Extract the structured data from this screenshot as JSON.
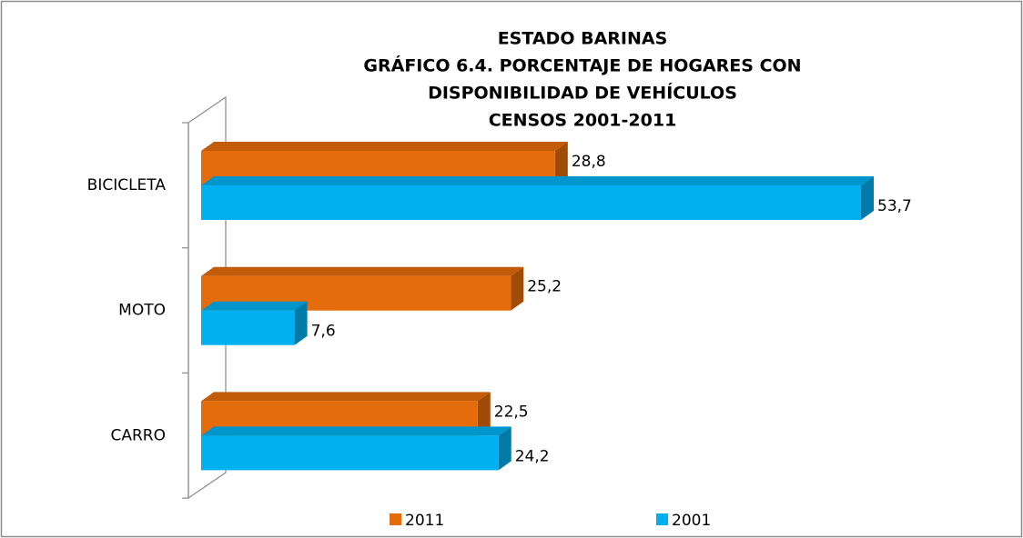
{
  "chart_data": {
    "type": "bar3d-horizontal",
    "title": [
      "ESTADO BARINAS",
      "GRÁFICO 6.4. PORCENTAJE DE HOGARES CON",
      "DISPONIBILIDAD DE VEHÍCULOS",
      "CENSOS 2001-2011"
    ],
    "categories": [
      "BICICLETA",
      "MOTO",
      "CARRO"
    ],
    "series": [
      {
        "name": "2011",
        "color": "#e46c0a",
        "values": [
          28.8,
          25.2,
          22.5
        ],
        "value_labels": [
          "28,8",
          "25,2",
          "22,5"
        ]
      },
      {
        "name": "2001",
        "color": "#00b0f0",
        "values": [
          53.7,
          7.6,
          24.2
        ],
        "value_labels": [
          "53,7",
          "7,6",
          "24,2"
        ]
      }
    ],
    "legend": "bottom"
  }
}
